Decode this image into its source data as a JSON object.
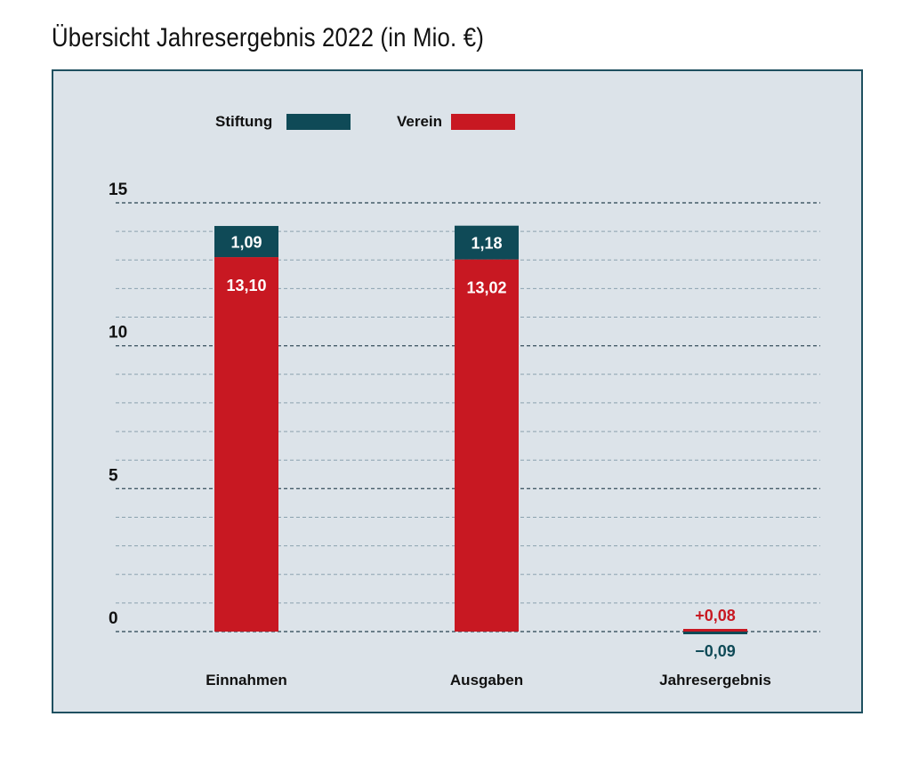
{
  "title": "Übersicht Jahresergebnis 2022 (in Mio. €)",
  "colors": {
    "stiftung": "#0f4a57",
    "verein": "#c81822",
    "grid": "#6a8797",
    "panel": "#dce3e9"
  },
  "chart_data": {
    "type": "bar",
    "stacked": true,
    "title": "Übersicht Jahresergebnis 2022 (in Mio. €)",
    "categories": [
      "Einnahmen",
      "Ausgaben",
      "Jahresergebnis"
    ],
    "series": [
      {
        "name": "Verein",
        "values": [
          13.1,
          13.02,
          0.08
        ],
        "labels": [
          "13,10",
          "13,02",
          "+0,08"
        ]
      },
      {
        "name": "Stiftung",
        "values": [
          1.09,
          1.18,
          -0.09
        ],
        "labels": [
          "1,09",
          "1,18",
          "−0,09"
        ]
      }
    ],
    "yticks": [
      0,
      5,
      10,
      15
    ],
    "ylim": [
      0,
      15
    ],
    "grid": true,
    "legend": {
      "position": "top-left",
      "entries": [
        "Stiftung",
        "Verein"
      ]
    }
  }
}
